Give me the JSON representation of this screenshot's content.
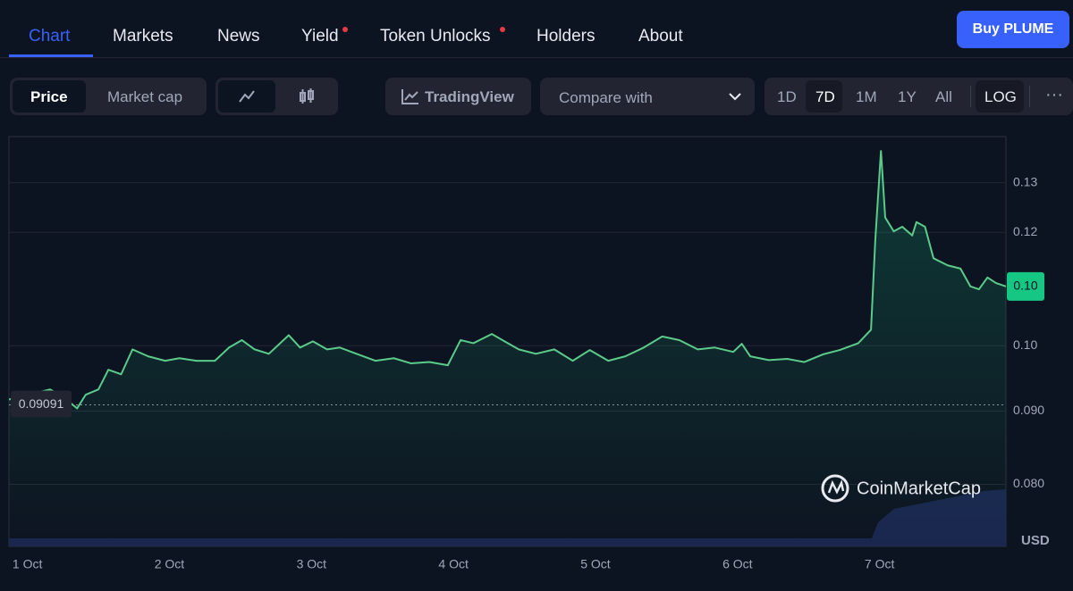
{
  "nav": {
    "tabs": [
      "Chart",
      "Markets",
      "News",
      "Yield",
      "Token Unlocks",
      "Holders",
      "About"
    ],
    "button": "Buy PLUME"
  },
  "toolbar": {
    "toggle": [
      "Price",
      "Market cap"
    ],
    "tradingview": "TradingView",
    "compare": "Compare with",
    "ranges": [
      "1D",
      "7D",
      "1M",
      "1Y",
      "All"
    ],
    "log_button": "LOG"
  },
  "chart_data": {
    "type": "line",
    "log": true,
    "grid": true,
    "currency": "USD",
    "watermark": "CoinMarketCap",
    "price_badge": "0.10",
    "reference_line": 0.09091,
    "xlim": [
      0.87,
      7.89
    ],
    "xticks": [
      {
        "value": 1,
        "label": "1 Oct"
      },
      {
        "value": 2,
        "label": "2 Oct"
      },
      {
        "value": 3,
        "label": "3 Oct"
      },
      {
        "value": 4,
        "label": "4 Oct"
      },
      {
        "value": 5,
        "label": "5 Oct"
      },
      {
        "value": 6,
        "label": "6 Oct"
      },
      {
        "value": 7,
        "label": "7 Oct"
      }
    ],
    "ylim": [
      0.0724,
      0.14
    ],
    "yticks": [
      {
        "value": 0.08,
        "label": "0.080"
      },
      {
        "value": 0.09,
        "label": "0.090"
      },
      {
        "value": 0.1,
        "label": "0.10"
      },
      0.12,
      0.13
    ],
    "x": [
      0.87,
      1.0,
      1.16,
      1.25,
      1.35,
      1.41,
      1.5,
      1.57,
      1.66,
      1.74,
      1.85,
      1.97,
      2.07,
      2.19,
      2.32,
      2.42,
      2.51,
      2.6,
      2.7,
      2.84,
      2.92,
      3.01,
      3.11,
      3.2,
      3.33,
      3.45,
      3.58,
      3.7,
      3.83,
      3.96,
      4.05,
      4.14,
      4.27,
      4.36,
      4.46,
      4.58,
      4.71,
      4.84,
      4.96,
      5.09,
      5.21,
      5.34,
      5.47,
      5.59,
      5.72,
      5.84,
      5.97,
      6.03,
      6.09,
      6.22,
      6.35,
      6.47,
      6.6,
      6.72,
      6.85,
      6.94,
      6.97,
      7.01,
      7.04,
      7.1,
      7.16,
      7.23,
      7.26,
      7.32,
      7.38,
      7.48,
      7.57,
      7.64,
      7.7,
      7.76,
      7.82,
      7.89
    ],
    "series": [
      {
        "name": "Price",
        "color": "#5ccb8a",
        "values": [
          0.0917,
          0.0924,
          0.0932,
          0.0921,
          0.0904,
          0.0924,
          0.0932,
          0.0962,
          0.0955,
          0.0994,
          0.0983,
          0.0976,
          0.098,
          0.0976,
          0.0976,
          0.0997,
          0.1009,
          0.0994,
          0.0987,
          0.1017,
          0.0997,
          0.1007,
          0.0994,
          0.0997,
          0.0986,
          0.0976,
          0.098,
          0.0972,
          0.0974,
          0.0969,
          0.1009,
          0.1004,
          0.1019,
          0.1007,
          0.0994,
          0.0987,
          0.0994,
          0.0976,
          0.0993,
          0.0976,
          0.0983,
          0.0997,
          0.1015,
          0.1009,
          0.0994,
          0.0997,
          0.099,
          0.1003,
          0.0983,
          0.0977,
          0.0979,
          0.0974,
          0.0986,
          0.0993,
          0.1004,
          0.1026,
          0.1185,
          0.1368,
          0.1229,
          0.1202,
          0.1211,
          0.1194,
          0.122,
          0.1211,
          0.1151,
          0.1138,
          0.1132,
          0.11,
          0.1095,
          0.1116,
          0.1106,
          0.11
        ]
      }
    ]
  }
}
